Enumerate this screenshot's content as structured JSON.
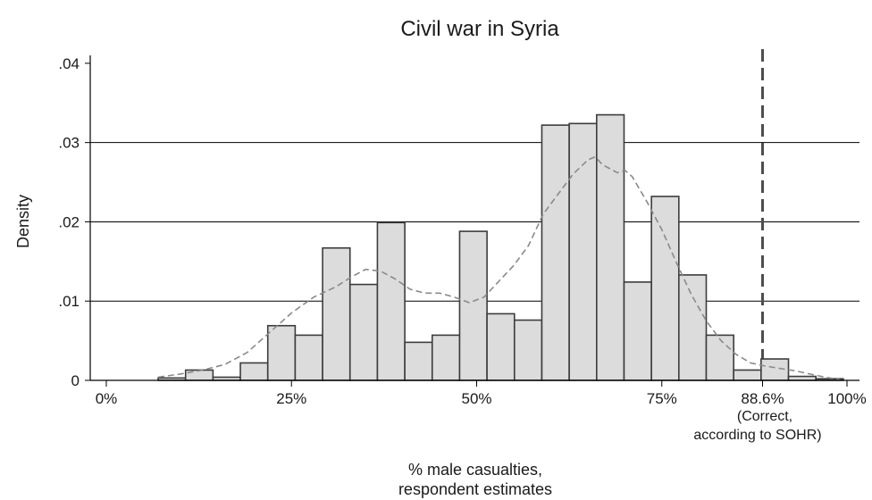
{
  "chart_data": {
    "type": "bar",
    "title": "Civil war in Syria",
    "ylabel": "Density",
    "xlabel": [
      "% male casualties,",
      "respondent estimates"
    ],
    "xlim": [
      0,
      100
    ],
    "ylim": [
      0,
      0.041
    ],
    "y_ticks": [
      {
        "value": 0,
        "label": "0"
      },
      {
        "value": 0.01,
        "label": ".01"
      },
      {
        "value": 0.02,
        "label": ".02"
      },
      {
        "value": 0.03,
        "label": ".03"
      },
      {
        "value": 0.04,
        "label": ".04"
      }
    ],
    "x_ticks": [
      {
        "value": 0,
        "label": "0%"
      },
      {
        "value": 25,
        "label": "25%"
      },
      {
        "value": 50,
        "label": "50%"
      },
      {
        "value": 75,
        "label": "75%"
      },
      {
        "value": 88.6,
        "label": "88.6%"
      },
      {
        "value": 100,
        "label": "100%"
      }
    ],
    "grid": "horizontal",
    "bar_width": 3.7,
    "bars": [
      {
        "x": 7.0,
        "value": 0.0003
      },
      {
        "x": 10.7,
        "value": 0.0013
      },
      {
        "x": 14.4,
        "value": 0.0004
      },
      {
        "x": 18.1,
        "value": 0.0022
      },
      {
        "x": 21.8,
        "value": 0.0069
      },
      {
        "x": 25.5,
        "value": 0.0057
      },
      {
        "x": 29.2,
        "value": 0.0167
      },
      {
        "x": 32.9,
        "value": 0.0121
      },
      {
        "x": 36.6,
        "value": 0.0199
      },
      {
        "x": 40.3,
        "value": 0.0048
      },
      {
        "x": 44.0,
        "value": 0.0057
      },
      {
        "x": 47.7,
        "value": 0.0188
      },
      {
        "x": 51.4,
        "value": 0.0084
      },
      {
        "x": 55.1,
        "value": 0.0076
      },
      {
        "x": 58.8,
        "value": 0.0322
      },
      {
        "x": 62.5,
        "value": 0.0324
      },
      {
        "x": 66.2,
        "value": 0.0335
      },
      {
        "x": 69.9,
        "value": 0.0124
      },
      {
        "x": 73.6,
        "value": 0.0232
      },
      {
        "x": 77.3,
        "value": 0.0133
      },
      {
        "x": 81.0,
        "value": 0.0057
      },
      {
        "x": 84.7,
        "value": 0.0013
      },
      {
        "x": 88.4,
        "value": 0.0027
      },
      {
        "x": 92.1,
        "value": 0.0005
      },
      {
        "x": 95.8,
        "value": 0.0002
      }
    ],
    "density_curve": [
      [
        7,
        0.0004
      ],
      [
        10,
        0.0008
      ],
      [
        13,
        0.0013
      ],
      [
        16,
        0.002
      ],
      [
        19,
        0.0035
      ],
      [
        22,
        0.006
      ],
      [
        25,
        0.0085
      ],
      [
        28,
        0.0105
      ],
      [
        31,
        0.0118
      ],
      [
        33,
        0.013
      ],
      [
        35,
        0.014
      ],
      [
        37,
        0.0138
      ],
      [
        39,
        0.0128
      ],
      [
        41,
        0.0115
      ],
      [
        43,
        0.011
      ],
      [
        45,
        0.011
      ],
      [
        47,
        0.0105
      ],
      [
        49,
        0.0098
      ],
      [
        51,
        0.0105
      ],
      [
        53,
        0.0125
      ],
      [
        55,
        0.0145
      ],
      [
        57,
        0.017
      ],
      [
        59,
        0.021
      ],
      [
        61,
        0.0235
      ],
      [
        63,
        0.026
      ],
      [
        65,
        0.0278
      ],
      [
        66,
        0.0282
      ],
      [
        67,
        0.0272
      ],
      [
        69,
        0.0262
      ],
      [
        70,
        0.0265
      ],
      [
        71,
        0.0257
      ],
      [
        73,
        0.0225
      ],
      [
        75,
        0.019
      ],
      [
        77,
        0.0148
      ],
      [
        79,
        0.0108
      ],
      [
        81,
        0.0075
      ],
      [
        83,
        0.005
      ],
      [
        85,
        0.0033
      ],
      [
        87,
        0.0022
      ],
      [
        89,
        0.0018
      ],
      [
        91,
        0.0015
      ],
      [
        93,
        0.0012
      ],
      [
        95,
        0.0008
      ],
      [
        97,
        0.0004
      ],
      [
        99,
        0.0001
      ]
    ],
    "reference_line": {
      "value": 88.6,
      "note": [
        "(Correct,",
        "according to SOHR)"
      ]
    },
    "colors": {
      "bar_fill": "#dcdcdc",
      "bar_stroke": "#3c3c3c",
      "density": "#8a8a8a",
      "reference": "#4d4d4d",
      "grid": "#000000"
    }
  }
}
